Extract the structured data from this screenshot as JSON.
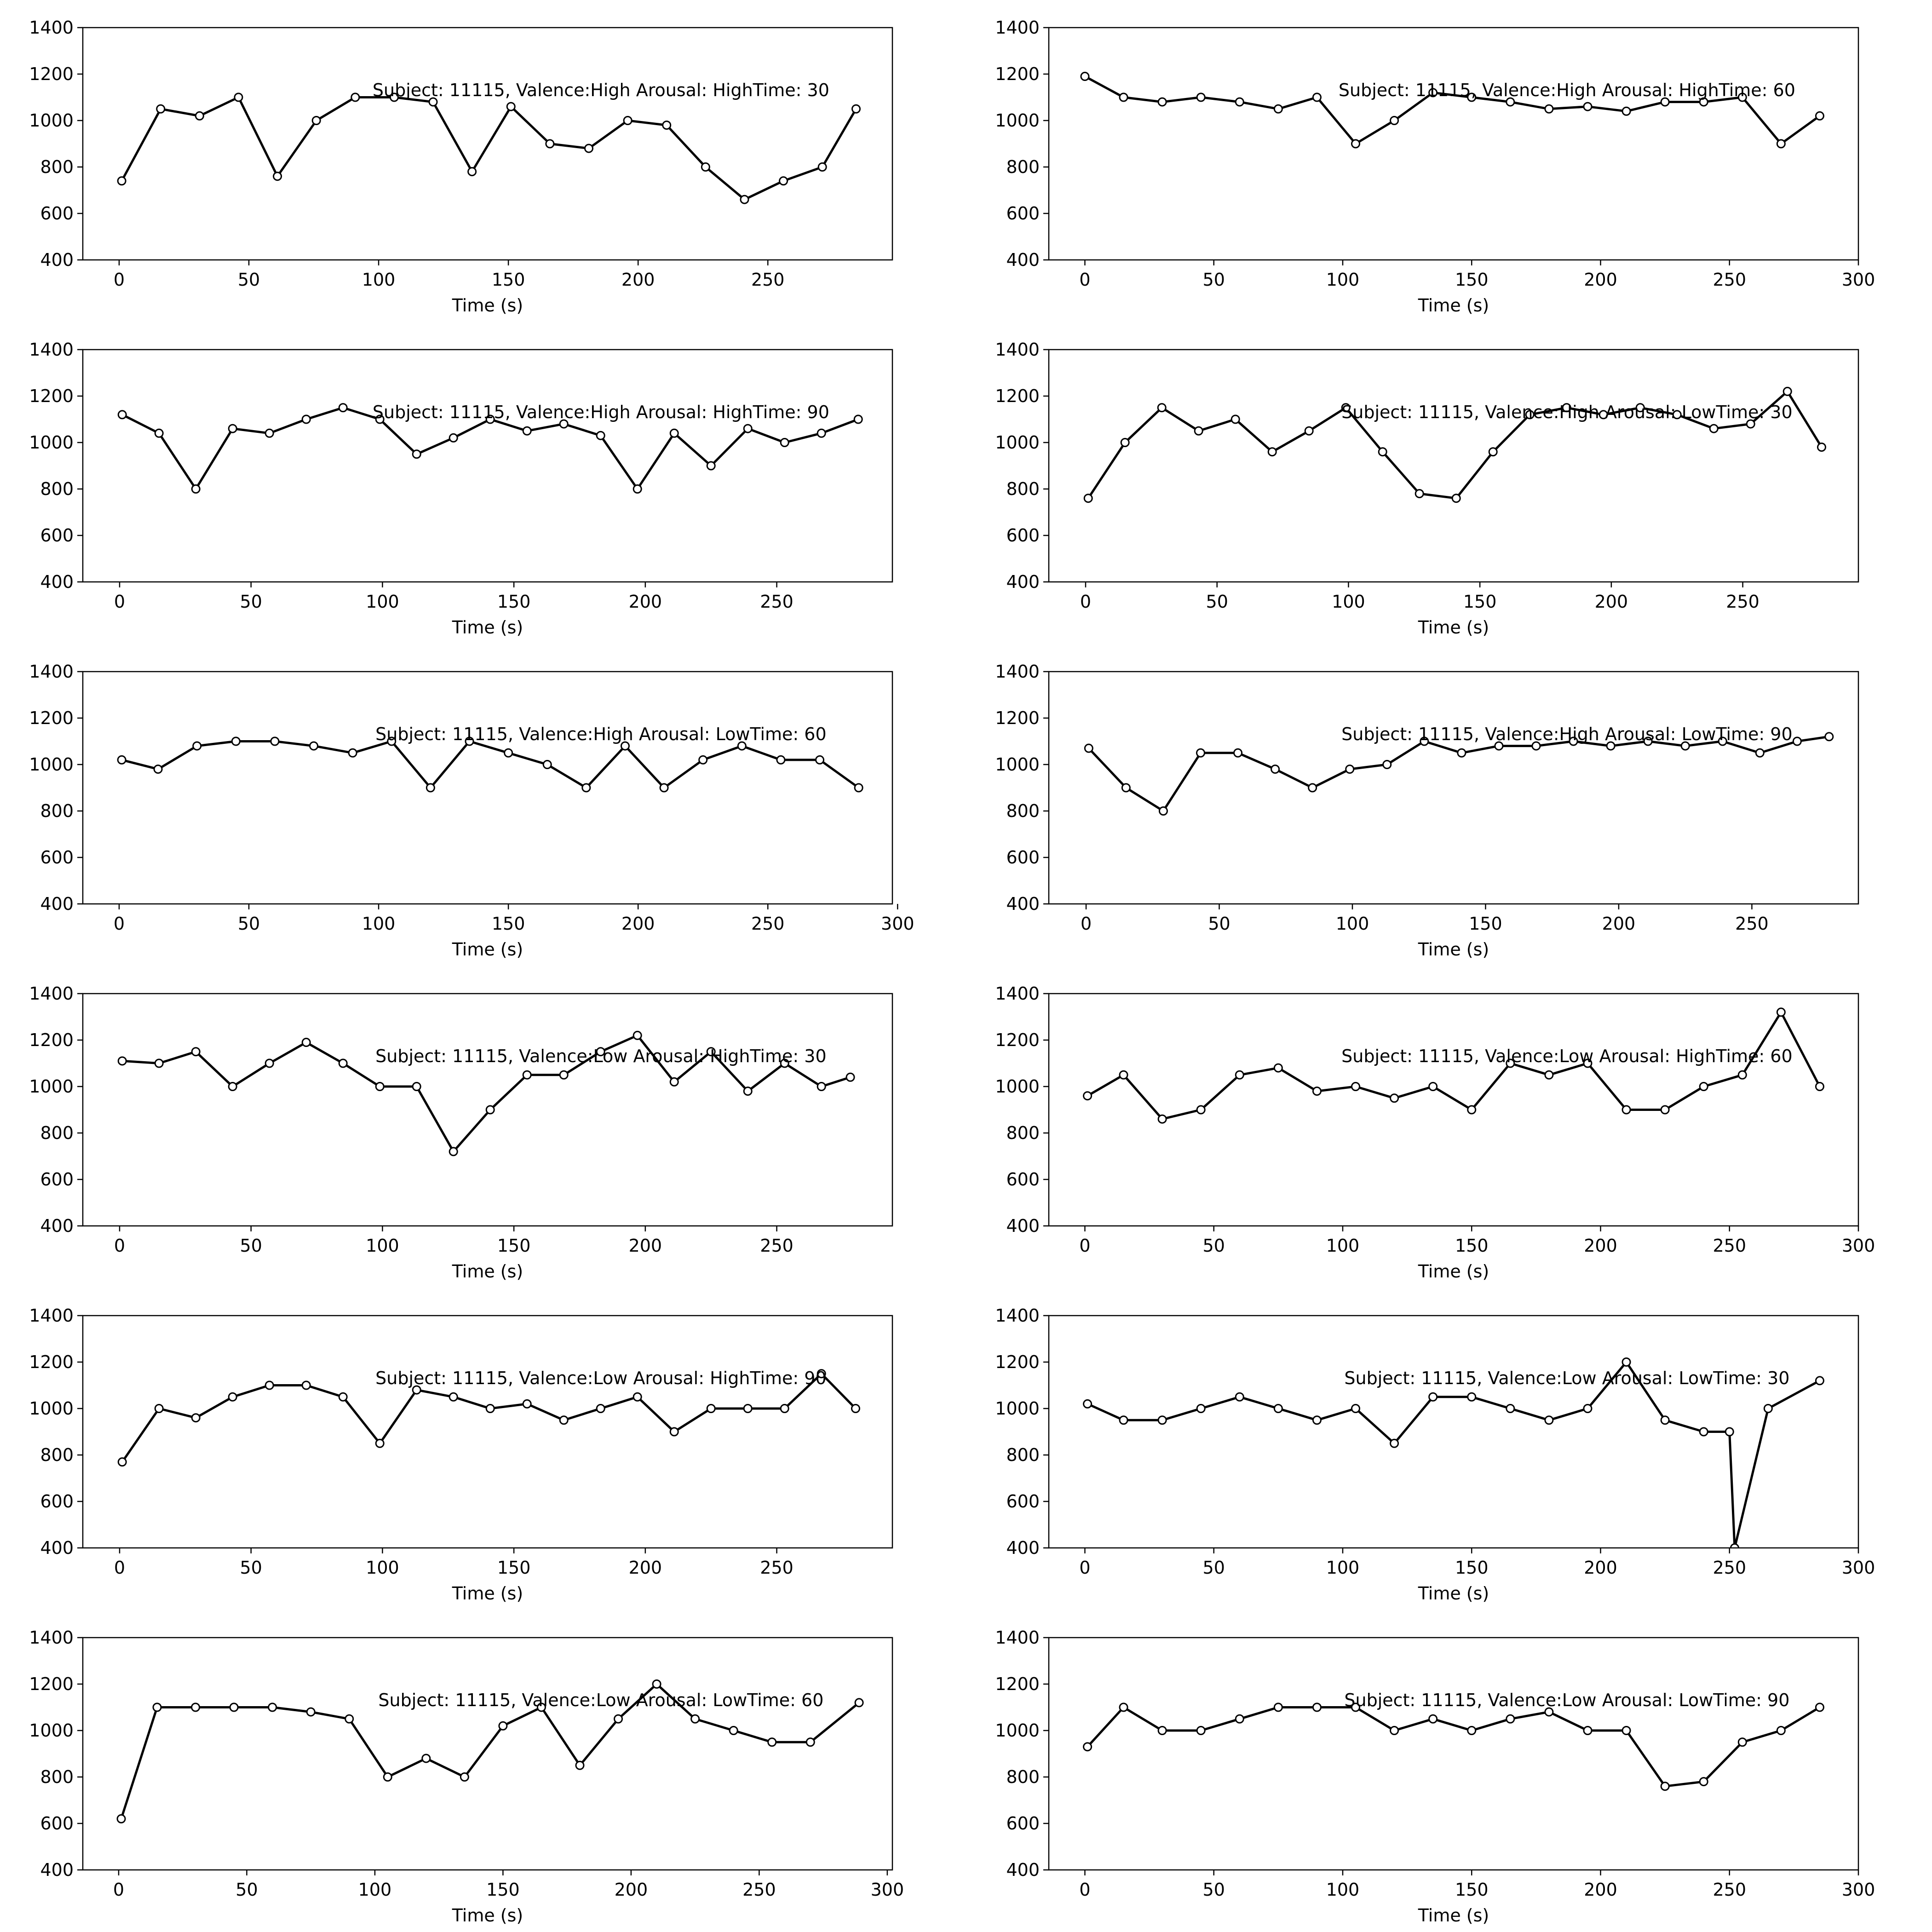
{
  "chart_data": [
    {
      "type": "line",
      "title": "Subject: 11115, Valence:High Arousal: HighTime: 30",
      "xlabel": "Time (s)",
      "ylabel": "",
      "xlim": [
        -14,
        298
      ],
      "ylim": [
        400,
        1400
      ],
      "xticks": [
        0,
        50,
        100,
        150,
        200,
        250
      ],
      "yticks": [
        400,
        600,
        800,
        1000,
        1200,
        1400
      ],
      "x": [
        1,
        16,
        31,
        46,
        61,
        76,
        91,
        106,
        121,
        136,
        151,
        166,
        181,
        196,
        211,
        226,
        241,
        256,
        271,
        284
      ],
      "y": [
        740,
        1050,
        1020,
        1100,
        760,
        1000,
        1100,
        1100,
        1080,
        780,
        1060,
        900,
        880,
        1000,
        980,
        800,
        660,
        740,
        800,
        1050
      ]
    },
    {
      "type": "line",
      "title": "Subject: 11115, Valence:High Arousal: HighTime: 60",
      "xlabel": "Time (s)",
      "ylabel": "",
      "xlim": [
        -14,
        300
      ],
      "ylim": [
        400,
        1400
      ],
      "xticks": [
        0,
        50,
        100,
        150,
        200,
        250,
        300
      ],
      "yticks": [
        400,
        600,
        800,
        1000,
        1200,
        1400
      ],
      "x": [
        0,
        15,
        30,
        45,
        60,
        75,
        90,
        105,
        120,
        135,
        150,
        165,
        180,
        195,
        210,
        225,
        240,
        255,
        270,
        285
      ],
      "y": [
        1190,
        1100,
        1080,
        1100,
        1080,
        1050,
        1100,
        900,
        1000,
        1120,
        1100,
        1080,
        1050,
        1060,
        1040,
        1080,
        1080,
        1100,
        900,
        1020
      ]
    },
    {
      "type": "line",
      "title": "Subject: 11115, Valence:High Arousal: HighTime: 90",
      "xlabel": "Time (s)",
      "ylabel": "",
      "xlim": [
        -14,
        294
      ],
      "ylim": [
        400,
        1400
      ],
      "xticks": [
        0,
        50,
        100,
        150,
        200,
        250
      ],
      "yticks": [
        400,
        600,
        800,
        1000,
        1200,
        1400
      ],
      "x": [
        1,
        15,
        29,
        43,
        57,
        71,
        85,
        99,
        113,
        127,
        141,
        155,
        169,
        183,
        197,
        211,
        225,
        239,
        253,
        267,
        281
      ],
      "y": [
        1120,
        1040,
        800,
        1060,
        1040,
        1100,
        1150,
        1100,
        950,
        1020,
        1100,
        1050,
        1080,
        1030,
        800,
        1040,
        900,
        1060,
        1000,
        1040,
        1100
      ]
    },
    {
      "type": "line",
      "title": "Subject: 11115, Valence:High Arousal: LowTime: 30",
      "xlabel": "Time (s)",
      "ylabel": "",
      "xlim": [
        -14,
        294
      ],
      "ylim": [
        400,
        1400
      ],
      "xticks": [
        0,
        50,
        100,
        150,
        200,
        250
      ],
      "yticks": [
        400,
        600,
        800,
        1000,
        1200,
        1400
      ],
      "x": [
        1,
        15,
        29,
        43,
        57,
        71,
        85,
        99,
        113,
        127,
        141,
        155,
        169,
        183,
        197,
        211,
        225,
        239,
        253,
        267,
        280
      ],
      "y": [
        760,
        1000,
        1150,
        1050,
        1100,
        960,
        1050,
        1150,
        960,
        780,
        760,
        960,
        1120,
        1150,
        1120,
        1150,
        1120,
        1060,
        1080,
        1220,
        980
      ]
    },
    {
      "type": "line",
      "title": "Subject: 11115, Valence:High Arousal: LowTime: 60",
      "xlabel": "Time (s)",
      "ylabel": "",
      "xlim": [
        -14,
        298
      ],
      "ylim": [
        400,
        1400
      ],
      "xticks": [
        0,
        50,
        100,
        150,
        200,
        250,
        300
      ],
      "yticks": [
        400,
        600,
        800,
        1000,
        1200,
        1400
      ],
      "x": [
        1,
        15,
        30,
        45,
        60,
        75,
        90,
        105,
        120,
        135,
        150,
        165,
        180,
        195,
        210,
        225,
        240,
        255,
        270,
        285
      ],
      "y": [
        1020,
        980,
        1080,
        1100,
        1100,
        1080,
        1050,
        1100,
        900,
        1100,
        1050,
        1000,
        900,
        1080,
        900,
        1020,
        1080,
        1020,
        1020,
        900
      ]
    },
    {
      "type": "line",
      "title": "Subject: 11115, Valence:High Arousal: LowTime: 90",
      "xlabel": "Time (s)",
      "ylabel": "",
      "xlim": [
        -14,
        290
      ],
      "ylim": [
        400,
        1400
      ],
      "xticks": [
        0,
        50,
        100,
        150,
        200,
        250
      ],
      "yticks": [
        400,
        600,
        800,
        1000,
        1200,
        1400
      ],
      "x": [
        1,
        15,
        29,
        43,
        57,
        71,
        85,
        99,
        113,
        127,
        141,
        155,
        169,
        183,
        197,
        211,
        225,
        239,
        253,
        267,
        279
      ],
      "y": [
        1070,
        900,
        800,
        1050,
        1050,
        980,
        900,
        980,
        1000,
        1100,
        1050,
        1080,
        1080,
        1100,
        1080,
        1100,
        1080,
        1100,
        1050,
        1100,
        1120
      ]
    },
    {
      "type": "line",
      "title": "Subject: 11115, Valence:Low Arousal: HighTime: 30",
      "xlabel": "Time (s)",
      "ylabel": "",
      "xlim": [
        -14,
        294
      ],
      "ylim": [
        400,
        1400
      ],
      "xticks": [
        0,
        50,
        100,
        150,
        200,
        250
      ],
      "yticks": [
        400,
        600,
        800,
        1000,
        1200,
        1400
      ],
      "x": [
        1,
        15,
        29,
        43,
        57,
        71,
        85,
        99,
        113,
        127,
        141,
        155,
        169,
        183,
        197,
        211,
        225,
        239,
        253,
        267,
        278
      ],
      "y": [
        1110,
        1100,
        1150,
        1000,
        1100,
        1190,
        1100,
        1000,
        1000,
        720,
        900,
        1050,
        1050,
        1150,
        1220,
        1020,
        1150,
        980,
        1100,
        1000,
        1040
      ]
    },
    {
      "type": "line",
      "title": "Subject: 11115, Valence:Low Arousal: HighTime: 60",
      "xlabel": "Time (s)",
      "ylabel": "",
      "xlim": [
        -14,
        300
      ],
      "ylim": [
        400,
        1400
      ],
      "xticks": [
        0,
        50,
        100,
        150,
        200,
        250,
        300
      ],
      "yticks": [
        400,
        600,
        800,
        1000,
        1200,
        1400
      ],
      "x": [
        1,
        15,
        30,
        45,
        60,
        75,
        90,
        105,
        120,
        135,
        150,
        165,
        180,
        195,
        210,
        225,
        240,
        255,
        270,
        285
      ],
      "y": [
        960,
        1050,
        860,
        900,
        1050,
        1080,
        980,
        1000,
        950,
        1000,
        900,
        1100,
        1050,
        1100,
        900,
        900,
        1000,
        1050,
        1320,
        1000
      ]
    },
    {
      "type": "line",
      "title": "Subject: 11115, Valence:Low Arousal: HighTime: 90",
      "xlabel": "Time (s)",
      "ylabel": "",
      "xlim": [
        -14,
        294
      ],
      "ylim": [
        400,
        1400
      ],
      "xticks": [
        0,
        50,
        100,
        150,
        200,
        250
      ],
      "yticks": [
        400,
        600,
        800,
        1000,
        1200,
        1400
      ],
      "x": [
        1,
        15,
        29,
        43,
        57,
        71,
        85,
        99,
        113,
        127,
        141,
        155,
        169,
        183,
        197,
        211,
        225,
        239,
        253,
        267,
        280
      ],
      "y": [
        770,
        1000,
        960,
        1050,
        1100,
        1100,
        1050,
        850,
        1080,
        1050,
        1000,
        1020,
        950,
        1000,
        1050,
        900,
        1000,
        1000,
        1000,
        1150,
        1000
      ]
    },
    {
      "type": "line",
      "title": "Subject: 11115, Valence:Low Arousal: LowTime: 30",
      "xlabel": "Time (s)",
      "ylabel": "",
      "xlim": [
        -14,
        300
      ],
      "ylim": [
        400,
        1400
      ],
      "xticks": [
        0,
        50,
        100,
        150,
        200,
        250,
        300
      ],
      "yticks": [
        400,
        600,
        800,
        1000,
        1200,
        1400
      ],
      "x": [
        1,
        15,
        30,
        45,
        60,
        75,
        90,
        105,
        120,
        135,
        150,
        165,
        180,
        195,
        210,
        225,
        240,
        250,
        252,
        265,
        285
      ],
      "y": [
        1020,
        950,
        950,
        1000,
        1050,
        1000,
        950,
        1000,
        850,
        1050,
        1050,
        1000,
        950,
        1000,
        1200,
        950,
        900,
        900,
        400,
        1000,
        1120
      ]
    },
    {
      "type": "line",
      "title": "Subject: 11115, Valence:Low Arousal: LowTime: 60",
      "xlabel": "Time (s)",
      "ylabel": "",
      "xlim": [
        -14,
        302
      ],
      "ylim": [
        400,
        1400
      ],
      "xticks": [
        0,
        50,
        100,
        150,
        200,
        250,
        300
      ],
      "yticks": [
        400,
        600,
        800,
        1000,
        1200,
        1400
      ],
      "x": [
        1,
        15,
        30,
        45,
        60,
        75,
        90,
        105,
        120,
        135,
        150,
        165,
        180,
        195,
        210,
        225,
        240,
        255,
        270,
        289
      ],
      "y": [
        620,
        1100,
        1100,
        1100,
        1100,
        1080,
        1050,
        800,
        880,
        800,
        1020,
        1100,
        850,
        1050,
        1200,
        1050,
        1000,
        950,
        950,
        1120
      ]
    },
    {
      "type": "line",
      "title": "Subject: 11115, Valence:Low Arousal: LowTime: 90",
      "xlabel": "Time (s)",
      "ylabel": "",
      "xlim": [
        -14,
        300
      ],
      "ylim": [
        400,
        1400
      ],
      "xticks": [
        0,
        50,
        100,
        150,
        200,
        250,
        300
      ],
      "yticks": [
        400,
        600,
        800,
        1000,
        1200,
        1400
      ],
      "x": [
        1,
        15,
        30,
        45,
        60,
        75,
        90,
        105,
        120,
        135,
        150,
        165,
        180,
        195,
        210,
        225,
        240,
        255,
        270,
        285
      ],
      "y": [
        930,
        1100,
        1000,
        1000,
        1050,
        1100,
        1100,
        1100,
        1000,
        1050,
        1000,
        1050,
        1080,
        1000,
        1000,
        760,
        780,
        950,
        1000,
        1100
      ]
    }
  ]
}
